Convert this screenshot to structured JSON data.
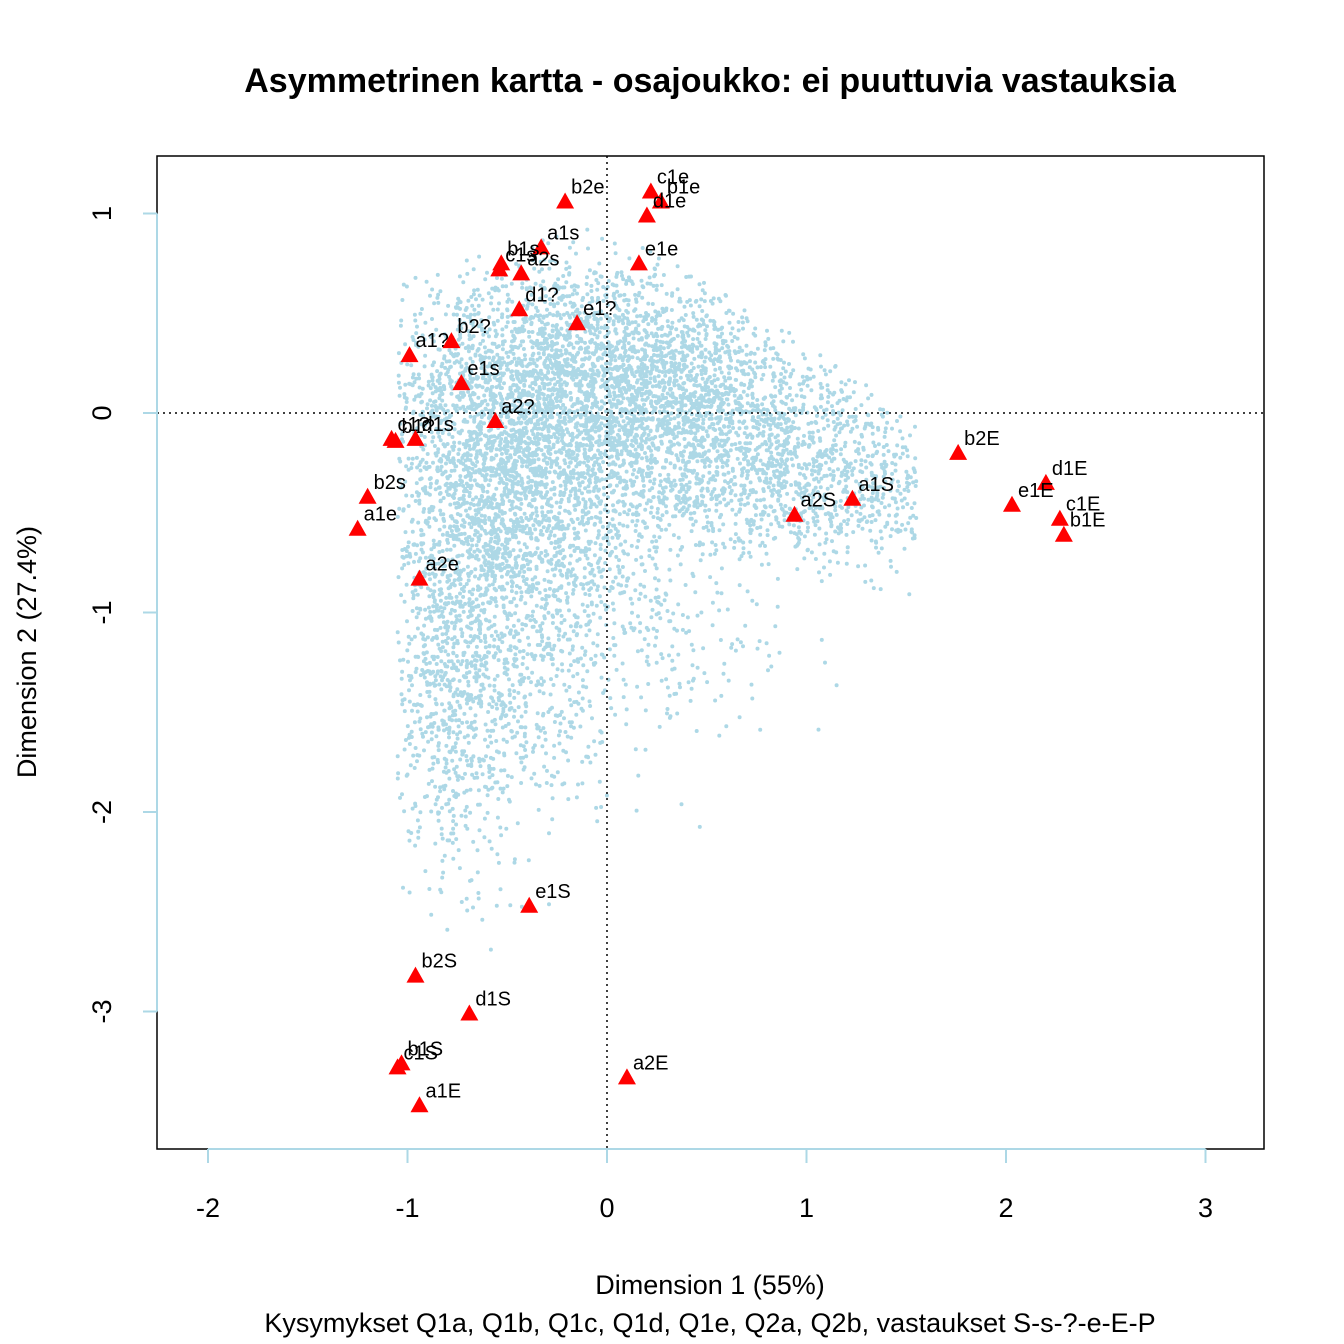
{
  "chart_data": {
    "type": "scatter",
    "title": "Asymmetrinen kartta - osajoukko: ei puuttuvia vastauksia",
    "xlabel": "Dimension 1 (55%)",
    "ylabel": "Dimension 2 (27.4%)",
    "subtitle": "Kysymykset Q1a, Q1b, Q1c, Q1d, Q1e, Q2a, Q2b, vastaukset S-s-?-e-E-P",
    "xlim": [
      -2.25,
      3.3
    ],
    "ylim": [
      -3.68,
      1.28
    ],
    "xticks": [
      -2,
      -1,
      0,
      1,
      2,
      3
    ],
    "yticks": [
      -3,
      -2,
      -1,
      0,
      1
    ],
    "xtick_labels": [
      "-2",
      "-1",
      "0",
      "1",
      "2",
      "3"
    ],
    "ytick_labels": [
      "-3",
      "-2",
      "-1",
      "0",
      "1"
    ],
    "reference_lines": {
      "x": 0,
      "y": 0,
      "style": "dotted"
    },
    "row_points_color": "#add8e6",
    "column_points_color": "#ff0000",
    "column_points_shape": "triangle",
    "row_points_note": "dense cloud of several thousand individual respondent points, not individually labeled",
    "column_points": [
      {
        "label": "b2e",
        "x": -0.21,
        "y": 1.06
      },
      {
        "label": "c1e",
        "x": 0.22,
        "y": 1.11
      },
      {
        "label": "b1e",
        "x": 0.27,
        "y": 1.06
      },
      {
        "label": "d1e",
        "x": 0.2,
        "y": 0.99
      },
      {
        "label": "a1s",
        "x": -0.33,
        "y": 0.83
      },
      {
        "label": "b1s",
        "x": -0.53,
        "y": 0.75
      },
      {
        "label": "c1s",
        "x": -0.54,
        "y": 0.72
      },
      {
        "label": "a2s",
        "x": -0.43,
        "y": 0.7
      },
      {
        "label": "e1e",
        "x": 0.16,
        "y": 0.75
      },
      {
        "label": "d1?",
        "x": -0.44,
        "y": 0.52
      },
      {
        "label": "e1?",
        "x": -0.15,
        "y": 0.45
      },
      {
        "label": "a1?",
        "x": -0.99,
        "y": 0.29
      },
      {
        "label": "b2?",
        "x": -0.78,
        "y": 0.36
      },
      {
        "label": "e1s",
        "x": -0.73,
        "y": 0.15
      },
      {
        "label": "a2?",
        "x": -0.56,
        "y": -0.04
      },
      {
        "label": "c1?",
        "x": -1.08,
        "y": -0.13
      },
      {
        "label": "b1?",
        "x": -1.06,
        "y": -0.14
      },
      {
        "label": "d1s",
        "x": -0.96,
        "y": -0.13
      },
      {
        "label": "b2s",
        "x": -1.2,
        "y": -0.42
      },
      {
        "label": "a1e",
        "x": -1.25,
        "y": -0.58
      },
      {
        "label": "a2e",
        "x": -0.94,
        "y": -0.83
      },
      {
        "label": "b2E",
        "x": 1.76,
        "y": -0.2
      },
      {
        "label": "d1E",
        "x": 2.2,
        "y": -0.35
      },
      {
        "label": "e1E",
        "x": 2.03,
        "y": -0.46
      },
      {
        "label": "c1E",
        "x": 2.27,
        "y": -0.53
      },
      {
        "label": "b1E",
        "x": 2.29,
        "y": -0.61
      },
      {
        "label": "a1S",
        "x": 1.23,
        "y": -0.43
      },
      {
        "label": "a2S",
        "x": 0.94,
        "y": -0.51
      },
      {
        "label": "e1S",
        "x": -0.39,
        "y": -2.47
      },
      {
        "label": "b2S",
        "x": -0.96,
        "y": -2.82
      },
      {
        "label": "d1S",
        "x": -0.69,
        "y": -3.01
      },
      {
        "label": "b1S",
        "x": -1.03,
        "y": -3.26
      },
      {
        "label": "c1S",
        "x": -1.05,
        "y": -3.28
      },
      {
        "label": "a2E",
        "x": 0.1,
        "y": -3.33
      },
      {
        "label": "a1E",
        "x": -0.94,
        "y": -3.47
      }
    ]
  }
}
